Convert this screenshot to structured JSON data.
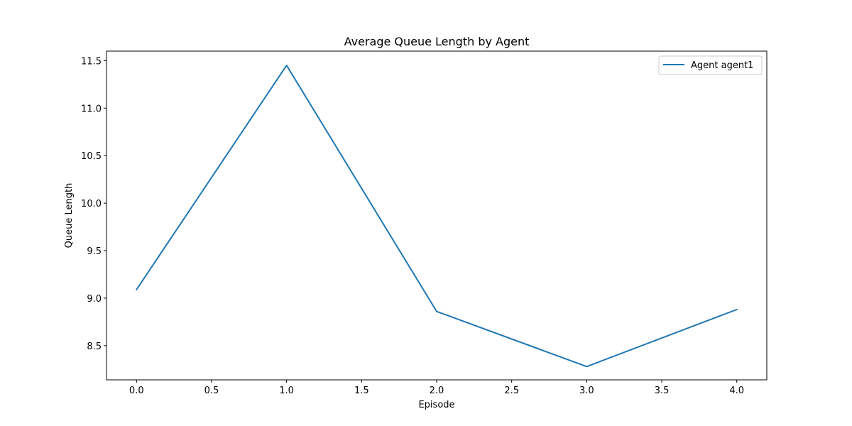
{
  "chart_data": {
    "type": "line",
    "title": "Average Queue Length by Agent",
    "xlabel": "Episode",
    "ylabel": "Queue Length",
    "xlim": [
      -0.2,
      4.2
    ],
    "ylim": [
      8.14,
      11.6
    ],
    "xticks": [
      0.0,
      0.5,
      1.0,
      1.5,
      2.0,
      2.5,
      3.0,
      3.5,
      4.0
    ],
    "xtick_labels": [
      "0.0",
      "0.5",
      "1.0",
      "1.5",
      "2.0",
      "2.5",
      "3.0",
      "3.5",
      "4.0"
    ],
    "yticks": [
      8.5,
      9.0,
      9.5,
      10.0,
      10.5,
      11.0,
      11.5
    ],
    "ytick_labels": [
      "8.5",
      "9.0",
      "9.5",
      "10.0",
      "10.5",
      "11.0",
      "11.5"
    ],
    "grid": false,
    "legend_position": "top-right",
    "x": [
      0,
      1,
      2,
      3,
      4
    ],
    "series": [
      {
        "name": "Agent agent1",
        "color": "#1f77b4",
        "values": [
          9.09,
          11.45,
          8.86,
          8.28,
          8.88
        ]
      }
    ]
  }
}
